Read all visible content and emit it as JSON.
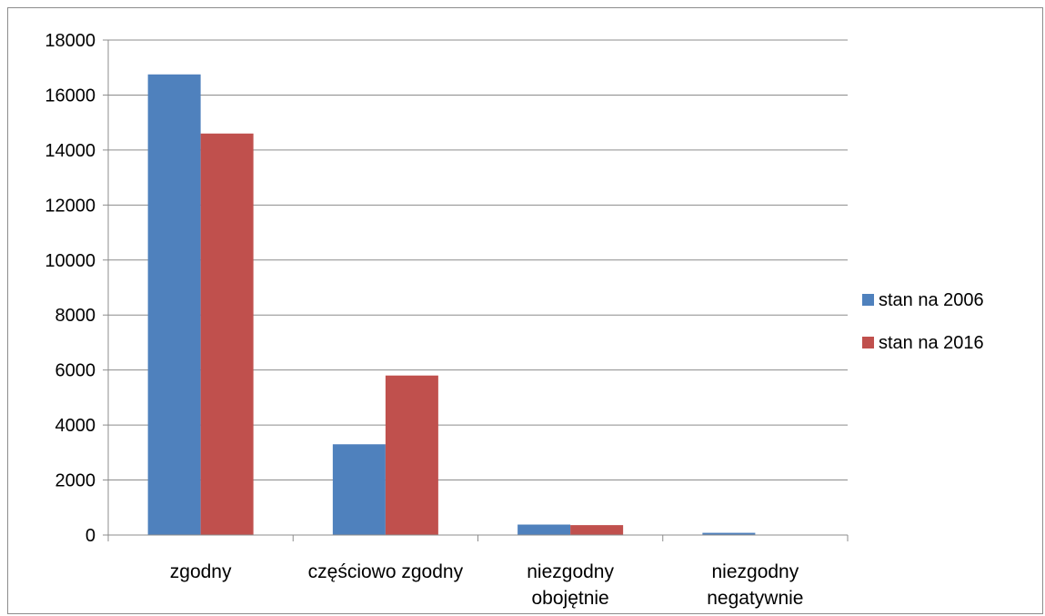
{
  "chart_data": {
    "type": "bar",
    "categories": [
      [
        "zgodny"
      ],
      [
        "częściowo zgodny"
      ],
      [
        "niezgodny",
        "obojętnie"
      ],
      [
        "niezgodny",
        "negatywnie"
      ]
    ],
    "series": [
      {
        "name": "stan na 2006",
        "color": "#4f81bd",
        "values": [
          16750,
          3300,
          380,
          80
        ]
      },
      {
        "name": "stan na 2016",
        "color": "#c0504d",
        "values": [
          14600,
          5800,
          360,
          0
        ]
      }
    ],
    "ylim": [
      0,
      18000
    ],
    "yticks": [
      0,
      2000,
      4000,
      6000,
      8000,
      10000,
      12000,
      14000,
      16000,
      18000
    ],
    "grid": true,
    "legend_position": "right"
  }
}
